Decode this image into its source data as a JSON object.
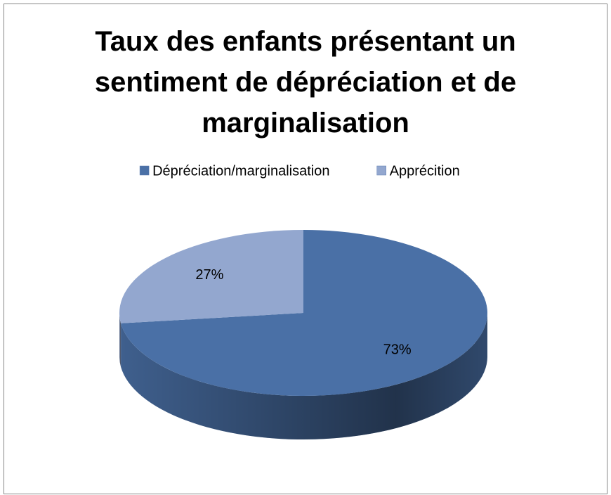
{
  "chart_data": {
    "type": "pie",
    "title": "Taux des enfants présentant un sentiment de dépréciation et de marginalisation",
    "categories": [
      "Dépréciation/marginalisation",
      "Apprécition"
    ],
    "values": [
      73,
      27
    ],
    "value_labels": [
      "73%",
      "27%"
    ],
    "colors": [
      "#4a70a6",
      "#93a7cf"
    ],
    "legend": "top"
  }
}
